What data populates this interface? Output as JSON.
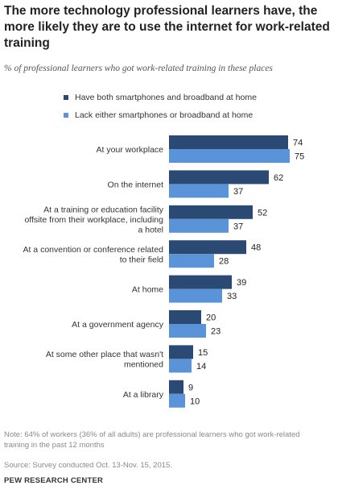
{
  "title": "The more technology professional learners have, the more likely they are to use the internet for work-related training",
  "subtitle": "% of professional learners who got work-related training in these places",
  "legend": [
    {
      "label": "Have both smartphones and broadband at home",
      "color": "#2a4a73"
    },
    {
      "label": "Lack either smartphones or broadband at home",
      "color": "#5b93d8"
    }
  ],
  "chart_data": {
    "type": "bar",
    "orientation": "horizontal",
    "categories": [
      [
        "At your workplace"
      ],
      [
        "On the internet"
      ],
      [
        "At a training or education facility",
        "offsite from their workplace, including",
        "a hotel"
      ],
      [
        "At a convention or conference related",
        "to their field"
      ],
      [
        "At home"
      ],
      [
        "At a government agency"
      ],
      [
        "At some other place that wasn't",
        "mentioned"
      ],
      [
        "At a library"
      ]
    ],
    "series": [
      {
        "name": "Have both smartphones and broadband at home",
        "color": "#2a4a73",
        "values": [
          74,
          62,
          52,
          48,
          39,
          20,
          15,
          9
        ]
      },
      {
        "name": "Lack either smartphones or broadband at home",
        "color": "#5b93d8",
        "values": [
          75,
          37,
          37,
          28,
          33,
          23,
          14,
          10
        ]
      }
    ],
    "xlim": [
      0,
      80
    ],
    "grid": false,
    "legend_position": "top"
  },
  "note": "Note:  64% of workers (36% of all adults) are professional learners who got work-related training in the past 12 months",
  "source": "Source: Survey conducted Oct. 13-Nov. 15, 2015.",
  "organization": "PEW RESEARCH CENTER"
}
